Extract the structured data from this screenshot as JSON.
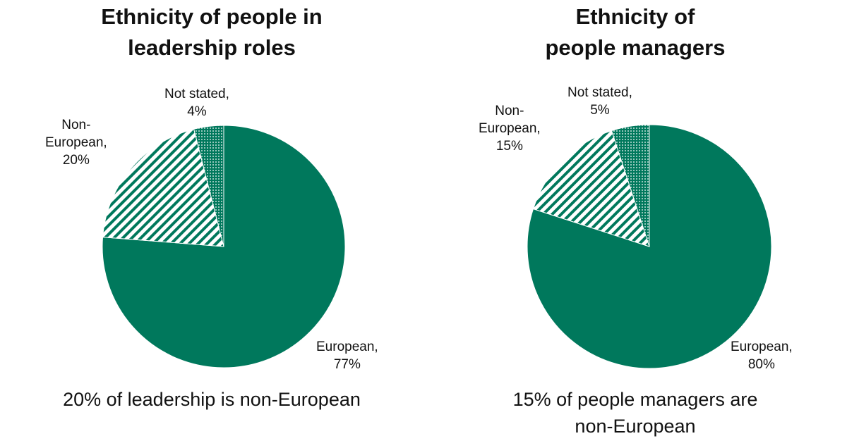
{
  "chart_data": [
    {
      "type": "pie",
      "title": [
        "Ethnicity of people in",
        "leadership roles"
      ],
      "slices": [
        {
          "label_lines": [
            "European,",
            "77%"
          ],
          "value": 77,
          "pattern": "solid"
        },
        {
          "label_lines": [
            "Non-",
            "European,",
            "20%"
          ],
          "value": 20,
          "pattern": "stripes"
        },
        {
          "label_lines": [
            "Not stated,",
            "4%"
          ],
          "value": 4,
          "pattern": "dots"
        }
      ],
      "caption": [
        "20% of leadership is non-European"
      ]
    },
    {
      "type": "pie",
      "title": [
        "Ethnicity of",
        "people managers"
      ],
      "slices": [
        {
          "label_lines": [
            "European,",
            "80%"
          ],
          "value": 80,
          "pattern": "solid"
        },
        {
          "label_lines": [
            "Non-",
            "European,",
            "15%"
          ],
          "value": 15,
          "pattern": "stripes"
        },
        {
          "label_lines": [
            "Not stated,",
            "5%"
          ],
          "value": 5,
          "pattern": "dots"
        }
      ],
      "caption": [
        "15% of  people managers are",
        "non-European"
      ]
    }
  ],
  "colors": {
    "slice": "#00785c",
    "background": "#ffffff"
  }
}
